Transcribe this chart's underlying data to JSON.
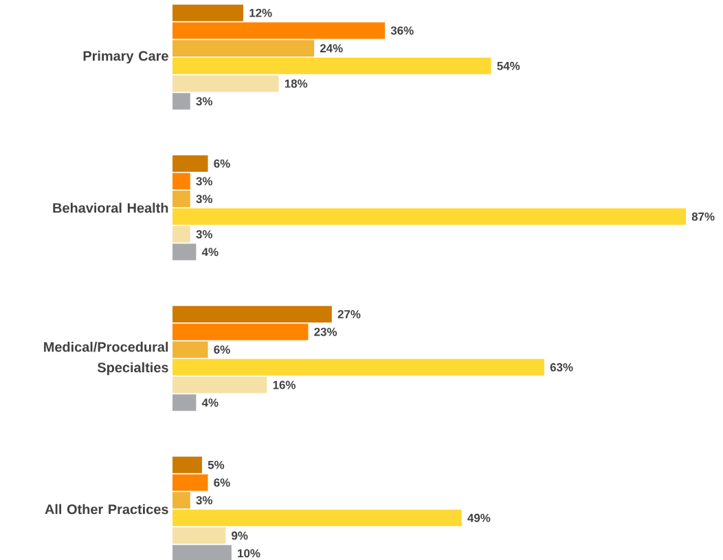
{
  "chart_data": {
    "type": "bar",
    "orientation": "horizontal",
    "tick_labels": "y",
    "categories": [
      "Primary Care",
      "Behavioral Health",
      "Medical/Procedural Specialties",
      "All Other Practices"
    ],
    "series": [
      {
        "color": "#cc7a00",
        "values": [
          12,
          6,
          27,
          5
        ],
        "value_labels": [
          "12%",
          "6%",
          "27%",
          "5%"
        ]
      },
      {
        "color": "#ff8400",
        "values": [
          36,
          3,
          23,
          6
        ],
        "value_labels": [
          "36%",
          "3%",
          "23%",
          "6%"
        ]
      },
      {
        "color": "#f0b437",
        "values": [
          24,
          3,
          6,
          3
        ],
        "value_labels": [
          "24%",
          "3%",
          "6%",
          "3%"
        ]
      },
      {
        "color": "#ffd933",
        "values": [
          54,
          87,
          63,
          49
        ],
        "value_labels": [
          "54%",
          "87%",
          "63%",
          "49%"
        ]
      },
      {
        "color": "#f5e1a6",
        "values": [
          18,
          3,
          16,
          9
        ],
        "value_labels": [
          "18%",
          "3%",
          "16%",
          "9%"
        ]
      },
      {
        "color": "#a7a8ab",
        "values": [
          3,
          4,
          4,
          10
        ],
        "value_labels": [
          "3%",
          "4%",
          "4%",
          "10%"
        ]
      }
    ]
  }
}
